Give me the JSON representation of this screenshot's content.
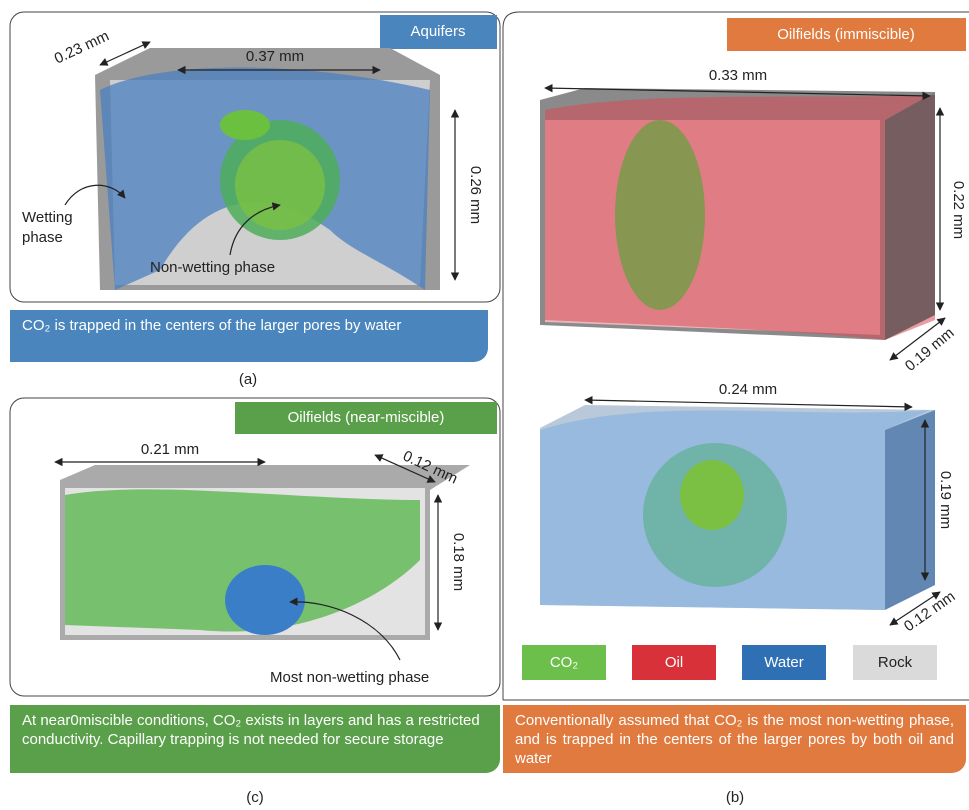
{
  "panel_a": {
    "tag": "Aquifers",
    "width": "0.37 mm",
    "depth": "0.23 mm",
    "height": "0.26 mm",
    "wetting_phase": [
      "Wetting",
      "phase"
    ],
    "non_wetting_phase": "Non-wetting phase",
    "caption": "CO₂ is trapped in the centers of the larger pores by water",
    "letter": "(a)"
  },
  "panel_b": {
    "tag": "Oilfields (immiscible)",
    "top_box": {
      "width": "0.33 mm",
      "height": "0.22 mm",
      "depth": "0.19 mm"
    },
    "bottom_box": {
      "width": "0.24 mm",
      "height": "0.19 mm",
      "depth": "0.12 mm"
    },
    "legend": [
      "CO₂",
      "Oil",
      "Water",
      "Rock"
    ],
    "caption": "Conventionally assumed that CO₂ is the most non-wetting phase, and is trapped in the centers of the larger pores by both oil and water",
    "letter": "(b)"
  },
  "panel_c": {
    "tag": "Oilfields (near-miscible)",
    "width": "0.21 mm",
    "depth": "0.12 mm",
    "height": "0.18 mm",
    "annotation": "Most non-wetting phase",
    "caption": "At near0miscible conditions, CO₂ exists in layers and has a restricted conductivity. Capillary trapping is not needed for secure storage",
    "letter": "(c)"
  }
}
